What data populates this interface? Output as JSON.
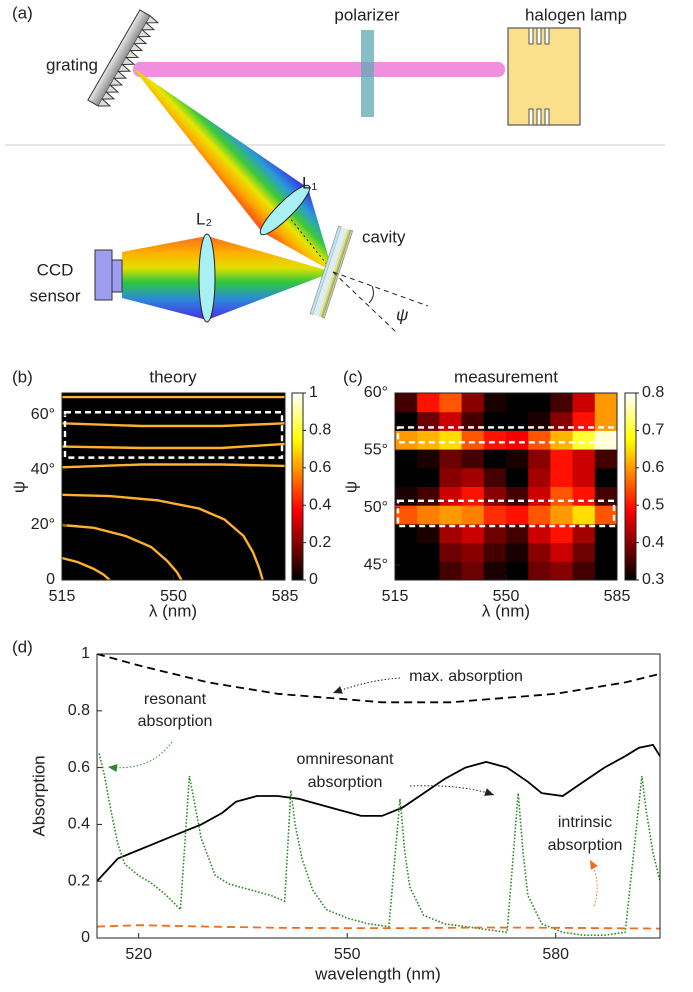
{
  "diagram": {
    "panel_label": "(a)",
    "grating": "grating",
    "polarizer": "polarizer",
    "lamp": "halogen lamp",
    "lens1": "L₁",
    "lens2": "L₂",
    "cavity": "cavity",
    "sensor": [
      "CCD",
      "sensor"
    ],
    "angle": "ψ"
  },
  "chart_data": [
    {
      "type": "contour",
      "panel_label": "(b)",
      "title": "theory",
      "xlabel": "λ (nm)",
      "ylabel": "ψ",
      "xlim": [
        515,
        585
      ],
      "ylim": [
        0,
        68
      ],
      "xticks": [
        515,
        550,
        585
      ],
      "yticks": [
        0,
        {
          "value": 20,
          "label": "20°"
        },
        {
          "value": 40,
          "label": "40°"
        },
        {
          "value": 60,
          "label": "60°"
        }
      ],
      "background": "#000000",
      "color": "#ffb02e",
      "colormap": "hot",
      "clim": [
        0,
        1
      ],
      "cticks": [
        0,
        0.2,
        0.4,
        0.6,
        0.8,
        1
      ],
      "highlight": [
        [
          44.5,
          61
        ]
      ],
      "series": [
        {
          "x": [
            515,
            540,
            565,
            585
          ],
          "values": [
            66.5,
            66.5,
            66.5,
            66.5
          ]
        },
        {
          "x": [
            515,
            540,
            565,
            585
          ],
          "values": [
            57,
            56,
            56,
            57
          ]
        },
        {
          "x": [
            515,
            540,
            565,
            585
          ],
          "values": [
            48.5,
            48,
            48,
            49.5
          ]
        },
        {
          "x": [
            515,
            540,
            565,
            585
          ],
          "values": [
            41,
            42,
            42,
            41.5
          ]
        },
        {
          "x": [
            515,
            530,
            545,
            558,
            566,
            572,
            575,
            577,
            578
          ],
          "values": [
            31,
            30.5,
            29,
            26,
            22,
            16,
            10,
            4,
            0
          ]
        },
        {
          "x": [
            515,
            525,
            535,
            543,
            548,
            551,
            552.5
          ],
          "values": [
            20,
            19,
            16,
            12,
            7,
            3,
            0
          ]
        },
        {
          "x": [
            515,
            520,
            525,
            528,
            530
          ],
          "values": [
            8,
            6.5,
            4,
            2,
            0
          ]
        }
      ]
    },
    {
      "type": "heatmap",
      "panel_label": "(c)",
      "title": "measurement",
      "xlabel": "λ (nm)",
      "ylabel": "ψ",
      "xlim": [
        515,
        585
      ],
      "ylim": [
        43.7,
        60
      ],
      "xticks": [
        515,
        550,
        585
      ],
      "yticks": [
        {
          "value": 45,
          "label": "45°"
        },
        {
          "value": 50,
          "label": "50°"
        },
        {
          "value": 55,
          "label": "55°"
        },
        {
          "value": 60,
          "label": "60°"
        }
      ],
      "colormap": "hot",
      "clim": [
        0.3,
        0.8
      ],
      "cticks": [
        0.3,
        0.4,
        0.5,
        0.6,
        0.7,
        0.8
      ],
      "highlight": [
        [
          55.7,
          57
        ],
        [
          48.4,
          50.6
        ]
      ],
      "z": [
        [
          0.3,
          0.3,
          0.35,
          0.38,
          0.32,
          0.3,
          0.38,
          0.4,
          0.35,
          0.3
        ],
        [
          0.3,
          0.3,
          0.38,
          0.4,
          0.35,
          0.32,
          0.4,
          0.45,
          0.38,
          0.3
        ],
        [
          0.3,
          0.32,
          0.42,
          0.45,
          0.38,
          0.35,
          0.45,
          0.5,
          0.42,
          0.3
        ],
        [
          0.55,
          0.58,
          0.6,
          0.58,
          0.52,
          0.5,
          0.55,
          0.6,
          0.65,
          0.55
        ],
        [
          0.32,
          0.35,
          0.45,
          0.5,
          0.4,
          0.35,
          0.45,
          0.55,
          0.5,
          0.35
        ],
        [
          0.3,
          0.3,
          0.4,
          0.42,
          0.35,
          0.3,
          0.42,
          0.5,
          0.45,
          0.3
        ],
        [
          0.3,
          0.32,
          0.38,
          0.35,
          0.3,
          0.32,
          0.4,
          0.5,
          0.45,
          0.35
        ],
        [
          0.6,
          0.62,
          0.65,
          0.55,
          0.5,
          0.48,
          0.55,
          0.62,
          0.7,
          0.78
        ],
        [
          0.3,
          0.38,
          0.45,
          0.35,
          0.3,
          0.3,
          0.32,
          0.4,
          0.5,
          0.6
        ],
        [
          0.35,
          0.5,
          0.55,
          0.4,
          0.32,
          0.3,
          0.3,
          0.35,
          0.45,
          0.6
        ]
      ]
    },
    {
      "type": "line",
      "panel_label": "(d)",
      "xlabel": "wavelength (nm)",
      "ylabel": "Absorption",
      "xlim": [
        514,
        595
      ],
      "ylim": [
        0,
        1
      ],
      "xticks": [
        520,
        550,
        580
      ],
      "yticks": [
        0,
        0.2,
        0.4,
        0.6,
        0.8,
        1
      ],
      "annotations": [
        {
          "lines": [
            "max. absorption"
          ],
          "color": "#222222"
        },
        {
          "lines": [
            "resonant",
            "absorption"
          ],
          "color": "#2a8a2a"
        },
        {
          "lines": [
            "omniresonant",
            "absorption"
          ],
          "color": "#222222"
        },
        {
          "lines": [
            "intrinsic",
            "absorption"
          ],
          "color": "#f26c1c"
        }
      ],
      "series": [
        {
          "color": "#000000",
          "line_style": "dashed",
          "x": [
            514,
            520,
            525,
            530,
            535,
            540,
            545,
            550,
            555,
            560,
            565,
            570,
            575,
            580,
            585,
            590,
            595
          ],
          "values": [
            1.0,
            0.96,
            0.93,
            0.9,
            0.88,
            0.86,
            0.85,
            0.84,
            0.83,
            0.83,
            0.83,
            0.84,
            0.85,
            0.86,
            0.88,
            0.9,
            0.93
          ]
        },
        {
          "color": "#000000",
          "line_style": "solid",
          "x": [
            514,
            517,
            520,
            523,
            526,
            529,
            532,
            534,
            537,
            540,
            543,
            546,
            549,
            552,
            555,
            558,
            561,
            564,
            567,
            570,
            573,
            576,
            578,
            581,
            584,
            587,
            590,
            592,
            594,
            595
          ],
          "values": [
            0.2,
            0.28,
            0.31,
            0.34,
            0.37,
            0.4,
            0.44,
            0.48,
            0.5,
            0.5,
            0.49,
            0.47,
            0.45,
            0.43,
            0.43,
            0.46,
            0.51,
            0.56,
            0.6,
            0.62,
            0.6,
            0.55,
            0.51,
            0.5,
            0.55,
            0.6,
            0.64,
            0.67,
            0.68,
            0.64
          ]
        },
        {
          "color": "#2a8a2a",
          "line_style": "dotted",
          "x": [
            514.3,
            515,
            516,
            517,
            518,
            520,
            522,
            524,
            526,
            527.3,
            528,
            529,
            531,
            533,
            536,
            539,
            541,
            541.9,
            542.5,
            543.5,
            545,
            547,
            550,
            553,
            556,
            557.6,
            558.3,
            559,
            561,
            564,
            567,
            570,
            573,
            574.6,
            575.3,
            576,
            578,
            581,
            584,
            587,
            590,
            592.4,
            593,
            594,
            595
          ],
          "values": [
            0.65,
            0.58,
            0.45,
            0.33,
            0.26,
            0.22,
            0.19,
            0.15,
            0.1,
            0.57,
            0.48,
            0.35,
            0.22,
            0.19,
            0.17,
            0.15,
            0.13,
            0.52,
            0.4,
            0.28,
            0.17,
            0.1,
            0.07,
            0.05,
            0.04,
            0.49,
            0.3,
            0.18,
            0.08,
            0.05,
            0.04,
            0.03,
            0.02,
            0.51,
            0.3,
            0.15,
            0.05,
            0.02,
            0.01,
            0.01,
            0.02,
            0.57,
            0.45,
            0.3,
            0.2
          ]
        },
        {
          "color": "#f26c1c",
          "line_style": "dashed",
          "x": [
            514,
            520,
            530,
            540,
            550,
            560,
            570,
            580,
            590,
            595
          ],
          "values": [
            0.04,
            0.045,
            0.04,
            0.036,
            0.035,
            0.035,
            0.037,
            0.036,
            0.034,
            0.033
          ]
        }
      ]
    }
  ]
}
